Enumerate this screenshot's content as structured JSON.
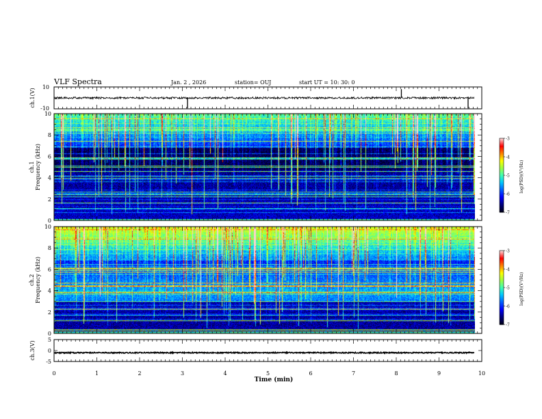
{
  "header": {
    "title": "VLF Spectra",
    "date": "Jan. 2 , 2026",
    "station": "station= OUJ",
    "start": "start  UT =  10: 30: 0"
  },
  "colors": {
    "background": "#ffffff",
    "trace": "#000000",
    "colormap": [
      "#00001e",
      "#000080",
      "#0000ff",
      "#0060ff",
      "#00c8ff",
      "#40ffb0",
      "#a0ff40",
      "#ffff00",
      "#ff8000",
      "#ff0000",
      "#ffd0d0"
    ]
  },
  "chart_data": [
    {
      "type": "line",
      "panel": "ch1-waveform",
      "ylabel": "ch.1(V)",
      "ylim": [
        -10,
        10
      ],
      "yticks": [
        "10",
        "-10"
      ],
      "baseline": 0,
      "spikes": [
        {
          "x": 3.12,
          "y": -9.5
        },
        {
          "x": 8.12,
          "y": 8.0
        },
        {
          "x": 9.68,
          "y": -9.5
        }
      ]
    },
    {
      "type": "heatmap",
      "panel": "ch1-spectrogram",
      "ylabel": "Frequency (kHz)",
      "ylabel2": "ch.1",
      "ylim": [
        0,
        10
      ],
      "yticks": [
        "0",
        "2",
        "4",
        "6",
        "8",
        "10"
      ],
      "colorbar": {
        "label": "log(PSD)(V²/Hz)",
        "ticks": [
          "-3",
          "-4",
          "-5",
          "-6",
          "-7"
        ],
        "range": [
          -7,
          -3
        ]
      }
    },
    {
      "type": "heatmap",
      "panel": "ch2-spectrogram",
      "ylabel": "Frequency (kHz)",
      "ylabel2": "ch.2",
      "ylim": [
        0,
        10
      ],
      "yticks": [
        "0",
        "2",
        "4",
        "6",
        "8",
        "10"
      ],
      "colorbar": {
        "label": "log(PSD)(V²/Hz)",
        "ticks": [
          "-3",
          "-4",
          "-5",
          "-6",
          "-7"
        ],
        "range": [
          -7,
          -3
        ]
      }
    },
    {
      "type": "line",
      "panel": "ch3-waveform",
      "ylabel": "ch.3(V)",
      "ylim": [
        -5,
        5
      ],
      "yticks": [
        "5",
        "0",
        "-5"
      ],
      "baseline": -1
    }
  ],
  "xaxis": {
    "label": "Time (min)",
    "xlim": [
      0,
      10
    ],
    "data_end": 9.83,
    "ticks": [
      "0",
      "1",
      "2",
      "3",
      "4",
      "5",
      "6",
      "7",
      "8",
      "9",
      "10"
    ]
  }
}
